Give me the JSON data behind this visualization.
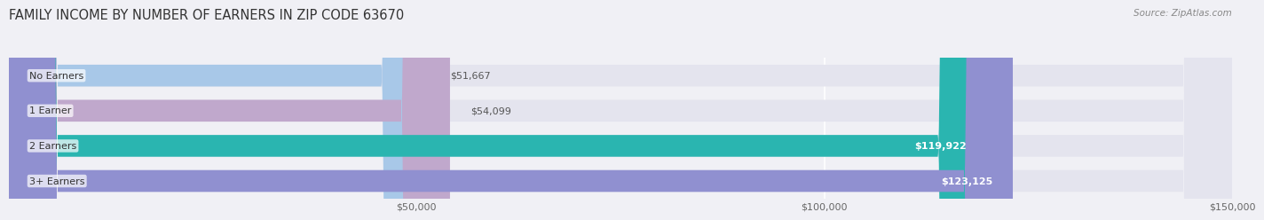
{
  "title": "FAMILY INCOME BY NUMBER OF EARNERS IN ZIP CODE 63670",
  "source": "Source: ZipAtlas.com",
  "categories": [
    "No Earners",
    "1 Earner",
    "2 Earners",
    "3+ Earners"
  ],
  "values": [
    51667,
    54099,
    119922,
    123125
  ],
  "bar_colors": [
    "#a8c8e8",
    "#c0a8cc",
    "#2ab5b0",
    "#9090d0"
  ],
  "label_colors": [
    "#555555",
    "#555555",
    "#ffffff",
    "#ffffff"
  ],
  "value_labels": [
    "$51,667",
    "$54,099",
    "$119,922",
    "$123,125"
  ],
  "xlim": [
    0,
    150000
  ],
  "xticks": [
    50000,
    100000,
    150000
  ],
  "xtick_labels": [
    "$50,000",
    "$100,000",
    "$150,000"
  ],
  "background_color": "#f0f0f5",
  "bar_background_color": "#e4e4ee",
  "title_fontsize": 10.5,
  "bar_height": 0.62,
  "fig_width": 14.06,
  "fig_height": 2.33
}
